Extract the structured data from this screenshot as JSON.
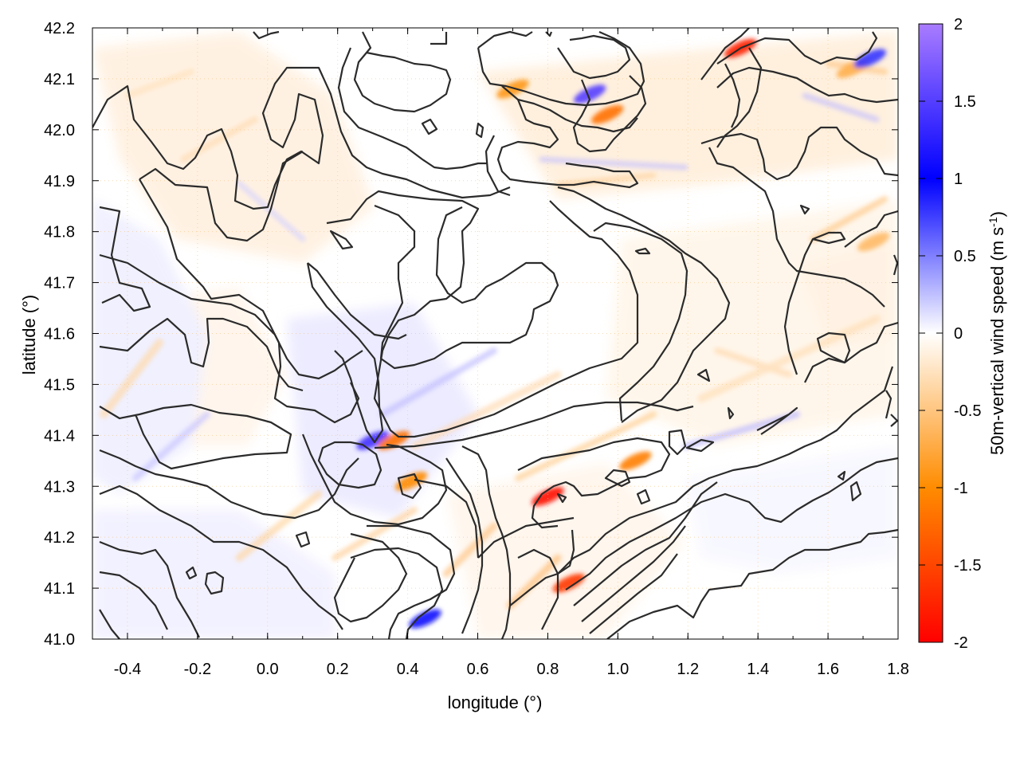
{
  "chart_data": {
    "type": "heatmap",
    "xlabel": "longitude (°)",
    "ylabel": "latitude (°)",
    "colorbar_label": "50m-vertical wind speed (m s",
    "colorbar_label_sup": "-1",
    "colorbar_label_tail": ")",
    "xlim": [
      -0.5,
      1.8
    ],
    "ylim": [
      41.0,
      42.2
    ],
    "clim": [
      -2,
      2
    ],
    "x_ticks": [
      "-0.4",
      "-0.2",
      "0.0",
      "0.2",
      "0.4",
      "0.6",
      "0.8",
      "1.0",
      "1.2",
      "1.4",
      "1.6",
      "1.8"
    ],
    "y_ticks": [
      "41.0",
      "41.1",
      "41.2",
      "41.3",
      "41.4",
      "41.5",
      "41.6",
      "41.7",
      "41.8",
      "41.9",
      "42.0",
      "42.1",
      "42.2"
    ],
    "colorbar_ticks": [
      "-2",
      "-1.5",
      "-1",
      "-0.5",
      "0",
      "0.5",
      "1",
      "1.5",
      "2"
    ],
    "colormap": [
      "#ff0000",
      "#ff8c00",
      "#ffffff",
      "#0000ff",
      "#a97cff"
    ],
    "grid": true,
    "contour_color": "#2b2b2b",
    "strong_features": [
      {
        "lon": 0.3,
        "lat": 41.39,
        "value": 1.4
      },
      {
        "lon": 0.36,
        "lat": 41.39,
        "value": -1.2
      },
      {
        "lon": 0.41,
        "lat": 41.31,
        "value": -1.0
      },
      {
        "lon": 0.8,
        "lat": 41.28,
        "value": -1.9
      },
      {
        "lon": 0.86,
        "lat": 41.11,
        "value": -1.6
      },
      {
        "lon": 0.45,
        "lat": 41.04,
        "value": 1.1
      },
      {
        "lon": 0.92,
        "lat": 42.07,
        "value": 1.5
      },
      {
        "lon": 0.97,
        "lat": 42.03,
        "value": -1.2
      },
      {
        "lon": 0.7,
        "lat": 42.08,
        "value": -0.9
      },
      {
        "lon": 1.35,
        "lat": 42.16,
        "value": -1.8
      },
      {
        "lon": 1.05,
        "lat": 41.35,
        "value": -1.1
      },
      {
        "lon": 1.67,
        "lat": 42.12,
        "value": -0.7
      },
      {
        "lon": 1.72,
        "lat": 42.14,
        "value": 0.8
      },
      {
        "lon": 1.73,
        "lat": 41.78,
        "value": -0.6
      }
    ]
  }
}
